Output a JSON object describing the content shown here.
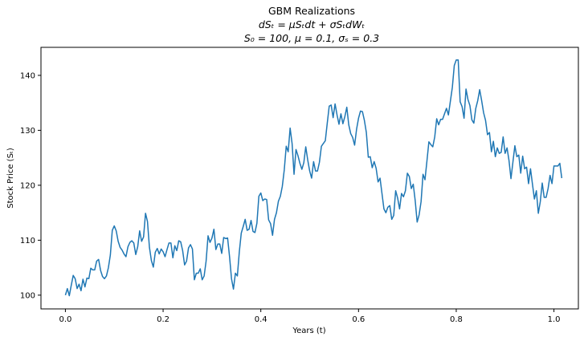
{
  "chart_data": {
    "type": "line",
    "title_lines": [
      "GBM Realizations",
      "dSₜ = μSₜdt + σSₜdWₜ",
      "S₀ = 100, μ = 0.1, σₛ = 0.3"
    ],
    "xlabel": "Years (t)",
    "ylabel": "Stock Price (Sₜ)",
    "xlim": [
      -0.05,
      1.05
    ],
    "ylim": [
      97.5,
      145.1
    ],
    "xticks": [
      0.0,
      0.2,
      0.4,
      0.6,
      0.8,
      1.0
    ],
    "xtick_labels": [
      "0.0",
      "0.2",
      "0.4",
      "0.6",
      "0.8",
      "1.0"
    ],
    "yticks": [
      100,
      110,
      120,
      130,
      140
    ],
    "ytick_labels": [
      "100",
      "110",
      "120",
      "130",
      "140"
    ],
    "grid": false,
    "color": "#1f77b4",
    "series": [
      {
        "points": [
          [
            0.0,
            100.0
          ],
          [
            0.004,
            101.2
          ],
          [
            0.008,
            99.9
          ],
          [
            0.012,
            101.8
          ],
          [
            0.016,
            103.6
          ],
          [
            0.02,
            103.0
          ],
          [
            0.024,
            101.2
          ],
          [
            0.028,
            102.0
          ],
          [
            0.032,
            100.8
          ],
          [
            0.036,
            102.9
          ],
          [
            0.04,
            101.5
          ],
          [
            0.044,
            103.1
          ],
          [
            0.048,
            103.0
          ],
          [
            0.052,
            104.9
          ],
          [
            0.056,
            104.6
          ],
          [
            0.06,
            104.6
          ],
          [
            0.064,
            106.2
          ],
          [
            0.068,
            106.5
          ],
          [
            0.072,
            104.5
          ],
          [
            0.076,
            103.4
          ],
          [
            0.08,
            103.0
          ],
          [
            0.084,
            103.5
          ],
          [
            0.088,
            105.0
          ],
          [
            0.092,
            107.3
          ],
          [
            0.096,
            111.8
          ],
          [
            0.1,
            112.6
          ],
          [
            0.104,
            111.7
          ],
          [
            0.108,
            109.8
          ],
          [
            0.112,
            108.7
          ],
          [
            0.116,
            108.2
          ],
          [
            0.12,
            107.5
          ],
          [
            0.124,
            107.0
          ],
          [
            0.128,
            108.8
          ],
          [
            0.132,
            109.6
          ],
          [
            0.136,
            109.9
          ],
          [
            0.14,
            109.5
          ],
          [
            0.144,
            107.4
          ],
          [
            0.148,
            108.8
          ],
          [
            0.152,
            111.7
          ],
          [
            0.156,
            109.8
          ],
          [
            0.16,
            110.6
          ],
          [
            0.164,
            114.9
          ],
          [
            0.168,
            113.4
          ],
          [
            0.172,
            108.7
          ],
          [
            0.176,
            106.3
          ],
          [
            0.18,
            105.1
          ],
          [
            0.184,
            107.8
          ],
          [
            0.188,
            108.5
          ],
          [
            0.192,
            107.5
          ],
          [
            0.196,
            108.4
          ],
          [
            0.2,
            107.9
          ],
          [
            0.204,
            107.0
          ],
          [
            0.208,
            108.3
          ],
          [
            0.212,
            109.5
          ],
          [
            0.216,
            109.5
          ],
          [
            0.22,
            106.8
          ],
          [
            0.224,
            109.0
          ],
          [
            0.228,
            108.1
          ],
          [
            0.232,
            109.9
          ],
          [
            0.236,
            109.7
          ],
          [
            0.24,
            108.1
          ],
          [
            0.244,
            105.5
          ],
          [
            0.248,
            106.2
          ],
          [
            0.252,
            108.6
          ],
          [
            0.256,
            109.2
          ],
          [
            0.26,
            108.4
          ],
          [
            0.264,
            102.8
          ],
          [
            0.268,
            104.0
          ],
          [
            0.272,
            104.0
          ],
          [
            0.276,
            104.8
          ],
          [
            0.28,
            102.8
          ],
          [
            0.284,
            103.5
          ],
          [
            0.288,
            106.2
          ],
          [
            0.292,
            110.8
          ],
          [
            0.296,
            109.6
          ],
          [
            0.3,
            110.4
          ],
          [
            0.304,
            112.0
          ],
          [
            0.308,
            108.3
          ],
          [
            0.312,
            109.3
          ],
          [
            0.316,
            109.3
          ],
          [
            0.32,
            107.6
          ],
          [
            0.324,
            110.5
          ],
          [
            0.328,
            110.3
          ],
          [
            0.332,
            110.4
          ],
          [
            0.336,
            107.0
          ],
          [
            0.34,
            103.0
          ],
          [
            0.344,
            101.1
          ],
          [
            0.348,
            104.0
          ],
          [
            0.352,
            103.5
          ],
          [
            0.356,
            107.9
          ],
          [
            0.36,
            111.3
          ],
          [
            0.364,
            112.5
          ],
          [
            0.368,
            113.8
          ],
          [
            0.372,
            111.8
          ],
          [
            0.376,
            112.0
          ],
          [
            0.38,
            113.6
          ],
          [
            0.384,
            111.6
          ],
          [
            0.388,
            111.4
          ],
          [
            0.392,
            113.1
          ],
          [
            0.396,
            118.0
          ],
          [
            0.4,
            118.6
          ],
          [
            0.404,
            117.2
          ],
          [
            0.408,
            117.5
          ],
          [
            0.412,
            117.4
          ],
          [
            0.416,
            113.7
          ],
          [
            0.42,
            113.0
          ],
          [
            0.424,
            110.9
          ],
          [
            0.428,
            113.8
          ],
          [
            0.432,
            115.0
          ],
          [
            0.436,
            117.1
          ],
          [
            0.44,
            118.0
          ],
          [
            0.444,
            119.8
          ],
          [
            0.448,
            122.8
          ],
          [
            0.452,
            127.1
          ],
          [
            0.456,
            126.1
          ],
          [
            0.46,
            130.4
          ],
          [
            0.464,
            127.6
          ],
          [
            0.468,
            122.0
          ],
          [
            0.472,
            126.5
          ],
          [
            0.476,
            125.4
          ],
          [
            0.48,
            124.0
          ],
          [
            0.484,
            122.9
          ],
          [
            0.488,
            124.1
          ],
          [
            0.492,
            127.0
          ],
          [
            0.496,
            124.6
          ],
          [
            0.5,
            122.6
          ],
          [
            0.504,
            121.3
          ],
          [
            0.508,
            124.3
          ],
          [
            0.512,
            122.6
          ],
          [
            0.516,
            122.6
          ],
          [
            0.52,
            124.2
          ],
          [
            0.524,
            127.1
          ],
          [
            0.528,
            127.6
          ],
          [
            0.532,
            128.1
          ],
          [
            0.536,
            131.3
          ],
          [
            0.54,
            134.4
          ],
          [
            0.544,
            134.6
          ],
          [
            0.548,
            132.3
          ],
          [
            0.552,
            134.8
          ],
          [
            0.556,
            132.8
          ],
          [
            0.56,
            131.1
          ],
          [
            0.564,
            133.0
          ],
          [
            0.568,
            131.2
          ],
          [
            0.572,
            132.5
          ],
          [
            0.576,
            134.2
          ],
          [
            0.58,
            131.0
          ],
          [
            0.584,
            129.4
          ],
          [
            0.588,
            128.7
          ],
          [
            0.592,
            127.3
          ],
          [
            0.596,
            130.2
          ],
          [
            0.6,
            132.2
          ],
          [
            0.604,
            133.5
          ],
          [
            0.608,
            133.4
          ],
          [
            0.612,
            131.8
          ],
          [
            0.616,
            129.6
          ],
          [
            0.62,
            125.1
          ],
          [
            0.624,
            125.2
          ],
          [
            0.628,
            123.2
          ],
          [
            0.632,
            124.3
          ],
          [
            0.636,
            123.1
          ],
          [
            0.64,
            120.6
          ],
          [
            0.644,
            121.3
          ],
          [
            0.648,
            118.5
          ],
          [
            0.652,
            115.7
          ],
          [
            0.656,
            115.0
          ],
          [
            0.66,
            116.0
          ],
          [
            0.664,
            116.3
          ],
          [
            0.668,
            113.8
          ],
          [
            0.672,
            114.5
          ],
          [
            0.676,
            119.0
          ],
          [
            0.68,
            117.7
          ],
          [
            0.684,
            115.7
          ],
          [
            0.688,
            118.5
          ],
          [
            0.692,
            117.9
          ],
          [
            0.696,
            119.0
          ],
          [
            0.7,
            122.2
          ],
          [
            0.704,
            121.6
          ],
          [
            0.708,
            119.4
          ],
          [
            0.712,
            120.2
          ],
          [
            0.716,
            117.2
          ],
          [
            0.72,
            113.3
          ],
          [
            0.724,
            114.6
          ],
          [
            0.728,
            117.0
          ],
          [
            0.732,
            122.0
          ],
          [
            0.736,
            121.0
          ],
          [
            0.74,
            124.4
          ],
          [
            0.744,
            127.9
          ],
          [
            0.748,
            127.4
          ],
          [
            0.752,
            127.0
          ],
          [
            0.756,
            128.8
          ],
          [
            0.76,
            132.1
          ],
          [
            0.764,
            131.0
          ],
          [
            0.768,
            132.0
          ],
          [
            0.772,
            132.0
          ],
          [
            0.776,
            133.0
          ],
          [
            0.78,
            134.0
          ],
          [
            0.784,
            132.8
          ],
          [
            0.788,
            135.3
          ],
          [
            0.792,
            137.8
          ],
          [
            0.796,
            141.8
          ],
          [
            0.8,
            142.8
          ],
          [
            0.804,
            142.8
          ],
          [
            0.808,
            135.2
          ],
          [
            0.812,
            134.3
          ],
          [
            0.816,
            132.2
          ],
          [
            0.82,
            137.5
          ],
          [
            0.824,
            135.6
          ],
          [
            0.828,
            134.5
          ],
          [
            0.832,
            131.9
          ],
          [
            0.836,
            131.3
          ],
          [
            0.84,
            134.0
          ],
          [
            0.844,
            135.4
          ],
          [
            0.848,
            137.4
          ],
          [
            0.852,
            135.4
          ],
          [
            0.856,
            133.2
          ],
          [
            0.86,
            131.8
          ],
          [
            0.864,
            129.2
          ],
          [
            0.868,
            129.6
          ],
          [
            0.872,
            126.1
          ],
          [
            0.876,
            128.0
          ],
          [
            0.88,
            125.2
          ],
          [
            0.884,
            126.8
          ],
          [
            0.888,
            125.8
          ],
          [
            0.892,
            126.0
          ],
          [
            0.896,
            128.8
          ],
          [
            0.9,
            125.8
          ],
          [
            0.904,
            126.8
          ],
          [
            0.908,
            124.5
          ],
          [
            0.912,
            121.2
          ],
          [
            0.916,
            124.2
          ],
          [
            0.92,
            127.2
          ],
          [
            0.924,
            125.2
          ],
          [
            0.928,
            125.5
          ],
          [
            0.932,
            122.2
          ],
          [
            0.936,
            125.3
          ],
          [
            0.94,
            123.0
          ],
          [
            0.944,
            123.3
          ],
          [
            0.948,
            120.3
          ],
          [
            0.952,
            123.0
          ],
          [
            0.956,
            120.2
          ],
          [
            0.96,
            117.5
          ],
          [
            0.964,
            119.0
          ],
          [
            0.968,
            114.9
          ],
          [
            0.972,
            117.0
          ],
          [
            0.976,
            120.4
          ],
          [
            0.98,
            117.8
          ],
          [
            0.984,
            117.8
          ],
          [
            0.988,
            119.4
          ],
          [
            0.992,
            121.8
          ],
          [
            0.996,
            120.3
          ],
          [
            1.0,
            123.5
          ],
          [
            1.004,
            123.5
          ],
          [
            1.008,
            123.5
          ],
          [
            1.012,
            124.0
          ],
          [
            1.016,
            121.3
          ]
        ]
      }
    ]
  }
}
